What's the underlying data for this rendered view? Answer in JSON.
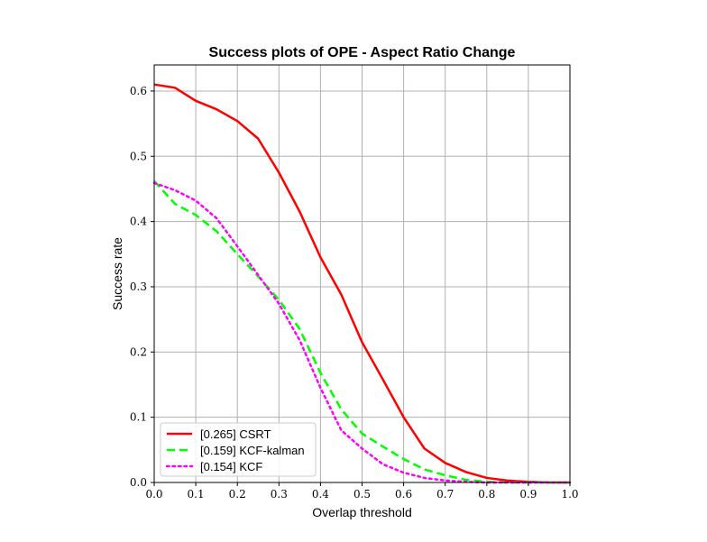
{
  "chart_data": {
    "type": "line",
    "title": "Success plots of OPE - Aspect Ratio Change",
    "xlabel": "Overlap threshold",
    "ylabel": "Success rate",
    "xlim": [
      0,
      1
    ],
    "ylim": [
      0,
      0.64
    ],
    "xticks": [
      "0.0",
      "0.1",
      "0.2",
      "0.3",
      "0.4",
      "0.5",
      "0.6",
      "0.7",
      "0.8",
      "0.9",
      "1.0"
    ],
    "yticks": [
      "0.0",
      "0.1",
      "0.2",
      "0.3",
      "0.4",
      "0.5",
      "0.6"
    ],
    "grid": true,
    "legend_position": "lower-left",
    "x": [
      0.0,
      0.05,
      0.1,
      0.15,
      0.2,
      0.25,
      0.3,
      0.35,
      0.4,
      0.45,
      0.5,
      0.55,
      0.6,
      0.65,
      0.7,
      0.75,
      0.8,
      0.85,
      0.9,
      0.95,
      1.0
    ],
    "series": [
      {
        "name": "[0.265] CSRT",
        "color": "#ff0000",
        "style": "solid",
        "values": [
          0.61,
          0.605,
          0.585,
          0.572,
          0.554,
          0.527,
          0.475,
          0.415,
          0.345,
          0.288,
          0.215,
          0.158,
          0.1,
          0.052,
          0.03,
          0.016,
          0.007,
          0.003,
          0.001,
          0.0,
          0.0
        ]
      },
      {
        "name": "[0.159] KCF-kalman",
        "color": "#00ff00",
        "style": "dashed",
        "values": [
          0.462,
          0.427,
          0.41,
          0.385,
          0.35,
          0.316,
          0.28,
          0.235,
          0.168,
          0.112,
          0.075,
          0.055,
          0.036,
          0.02,
          0.011,
          0.004,
          0.001,
          0.0,
          0.0,
          0.0,
          0.0
        ]
      },
      {
        "name": "[0.154] KCF",
        "color": "#ff00ff",
        "style": "dotted",
        "values": [
          0.459,
          0.448,
          0.432,
          0.405,
          0.362,
          0.318,
          0.274,
          0.218,
          0.145,
          0.08,
          0.052,
          0.028,
          0.015,
          0.007,
          0.003,
          0.001,
          0.0,
          0.0,
          0.0,
          0.0,
          0.0
        ]
      }
    ]
  }
}
